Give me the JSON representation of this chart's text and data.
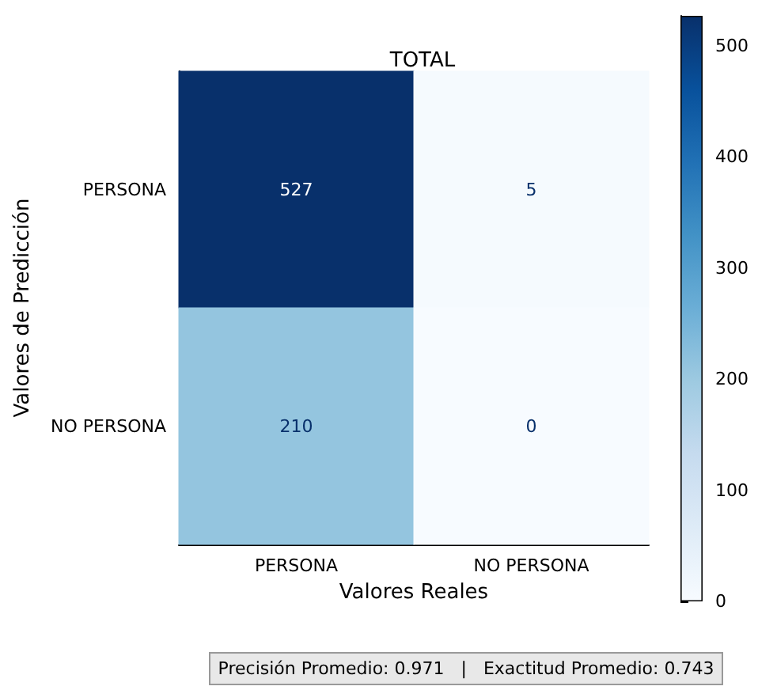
{
  "chart_data": {
    "type": "heatmap",
    "title": "TOTAL",
    "xlabel": "Valores Reales",
    "ylabel": "Valores de Predicción",
    "categories": [
      "PERSONA",
      "NO PERSONA"
    ],
    "y_categories": [
      "PERSONA",
      "NO PERSONA"
    ],
    "cells": [
      [
        527,
        5
      ],
      [
        210,
        0
      ]
    ],
    "clim": [
      0,
      527
    ],
    "cticks": [
      0,
      100,
      200,
      300,
      400,
      500
    ],
    "data_labels": true,
    "annotations": [
      "Precisión Promedio: 0.971   |   Exactitud Promedio: 0.743"
    ]
  }
}
